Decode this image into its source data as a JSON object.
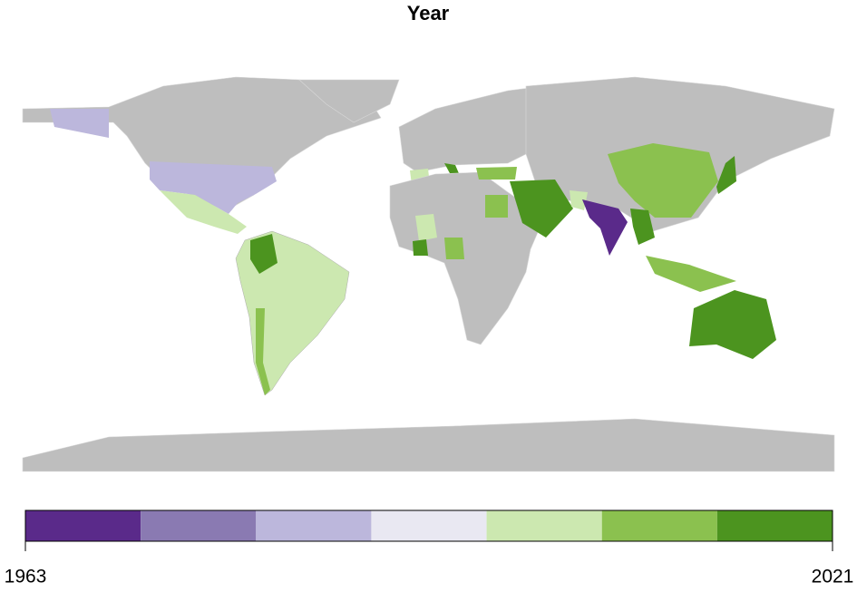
{
  "title": "Year",
  "legend": {
    "min": 1963,
    "max": 2021,
    "colors": [
      "#5a2a8a",
      "#8a7ab2",
      "#bcb7dc",
      "#e9e8f2",
      "#cce8b0",
      "#8bc14f",
      "#4c941f"
    ]
  }
}
